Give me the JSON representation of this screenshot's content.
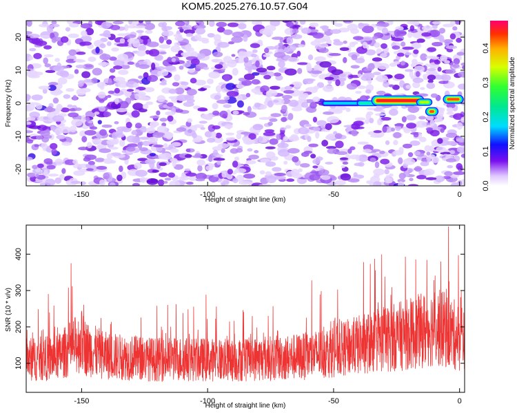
{
  "title": "KOM5.2025.276.10.57.G04",
  "chart_data": [
    {
      "type": "heatmap",
      "xlabel": "Height of straight line (km)",
      "ylabel": "Frequency (Hz)",
      "xlim": [
        -172,
        2
      ],
      "ylim": [
        -25,
        25
      ],
      "xticks": [
        -150,
        -100,
        -50,
        0
      ],
      "yticks": [
        -20,
        -10,
        0,
        10,
        20
      ],
      "colorbar": {
        "label": "Normalized spectral amplitude",
        "range": [
          0,
          0.48
        ],
        "ticks": [
          0.0,
          0.1,
          0.2,
          0.3,
          0.4
        ]
      },
      "signal": [
        {
          "x": [
            -54,
            -40
          ],
          "freq": 0,
          "amp": 0.18
        },
        {
          "x": [
            -40,
            -33
          ],
          "freq": 0,
          "amp": 0.25
        },
        {
          "x": [
            -33,
            -16
          ],
          "freq": 0.8,
          "amp": 0.48
        },
        {
          "x": [
            -16,
            -12
          ],
          "freq": 0.3,
          "amp": 0.3
        },
        {
          "x": [
            -12,
            -10
          ],
          "freq": -2.5,
          "amp": 0.42
        },
        {
          "x": [
            -5,
            0
          ],
          "freq": 1.2,
          "amp": 0.4
        }
      ]
    },
    {
      "type": "line",
      "xlabel": "Height of straight line (km)",
      "ylabel": "SNR (10 * v/v)",
      "xlim": [
        -172,
        2
      ],
      "ylim": [
        20,
        480
      ],
      "xticks": [
        -150,
        -100,
        -50,
        0
      ],
      "yticks": [
        100,
        200,
        300,
        400
      ],
      "color": "#ee3333",
      "series": [
        {
          "x": [
            -172,
            -160,
            -150,
            -148,
            -140,
            -130,
            -120,
            -110,
            -100,
            -90,
            -80,
            -70,
            -60,
            -50,
            -40,
            -30,
            -20,
            -10,
            -5,
            0,
            2
          ],
          "y": [
            110,
            115,
            160,
            140,
            120,
            115,
            110,
            112,
            110,
            108,
            112,
            115,
            120,
            135,
            150,
            165,
            180,
            200,
            190,
            170,
            180
          ]
        }
      ]
    }
  ]
}
